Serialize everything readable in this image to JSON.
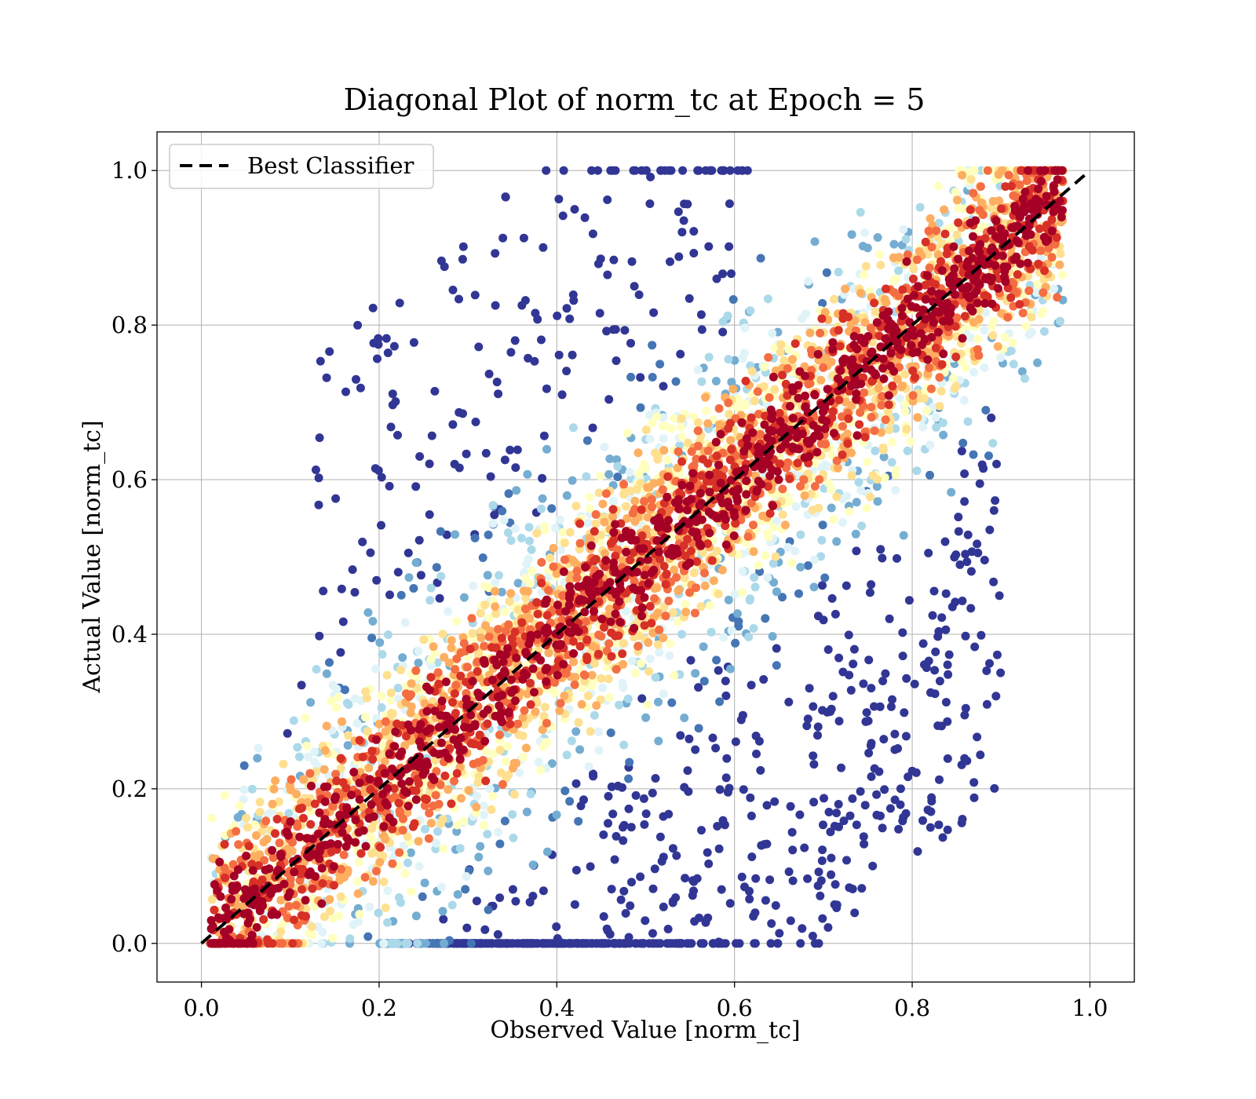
{
  "chart_data": {
    "type": "scatter",
    "title": "Diagonal Plot of norm_tc at Epoch = 5",
    "xlabel": "Observed Value [norm_tc]",
    "ylabel": "Actual Value [norm_tc]",
    "xlim": [
      -0.05,
      1.05
    ],
    "ylim": [
      -0.05,
      1.05
    ],
    "xticks": [
      "0.0",
      "0.2",
      "0.4",
      "0.6",
      "0.8",
      "1.0"
    ],
    "yticks": [
      "0.0",
      "0.2",
      "0.4",
      "0.6",
      "0.8",
      "1.0"
    ],
    "grid": true,
    "legend": {
      "placement": "top-left",
      "entries": [
        "Best Classifier"
      ]
    },
    "reference_line": {
      "name": "Best Classifier",
      "x": [
        0.0,
        1.0
      ],
      "y": [
        0.0,
        1.0
      ],
      "style": "dashed",
      "color": "#000000"
    },
    "colormap": [
      "#313695",
      "#4575b4",
      "#74add1",
      "#abd9e9",
      "#e0f3f8",
      "#ffffbf",
      "#fee090",
      "#fdae61",
      "#f46d43",
      "#d73027",
      "#a50026"
    ],
    "point_count": 6000
  }
}
